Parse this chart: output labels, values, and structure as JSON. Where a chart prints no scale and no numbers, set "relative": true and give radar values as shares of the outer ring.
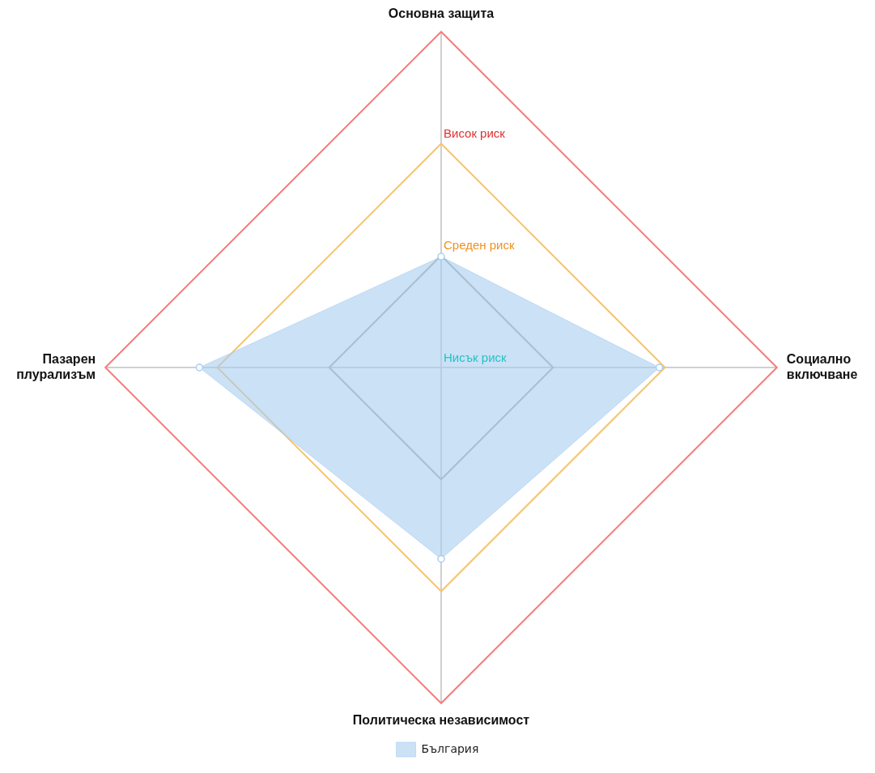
{
  "chart_data": {
    "type": "radar",
    "relative": true,
    "categories": [
      "Основна защита",
      "Социално\nвключване",
      "Политическа независимост",
      "Пазарен\nплурализъм"
    ],
    "series": [
      {
        "name": "България",
        "color": "#a8cdf0",
        "values": [
          0.33,
          0.65,
          0.57,
          0.72
        ]
      }
    ],
    "annotations": [
      "Нисък риск",
      "Среден риск",
      "Висок риск"
    ],
    "marker": "circle",
    "legend": "bottom"
  }
}
